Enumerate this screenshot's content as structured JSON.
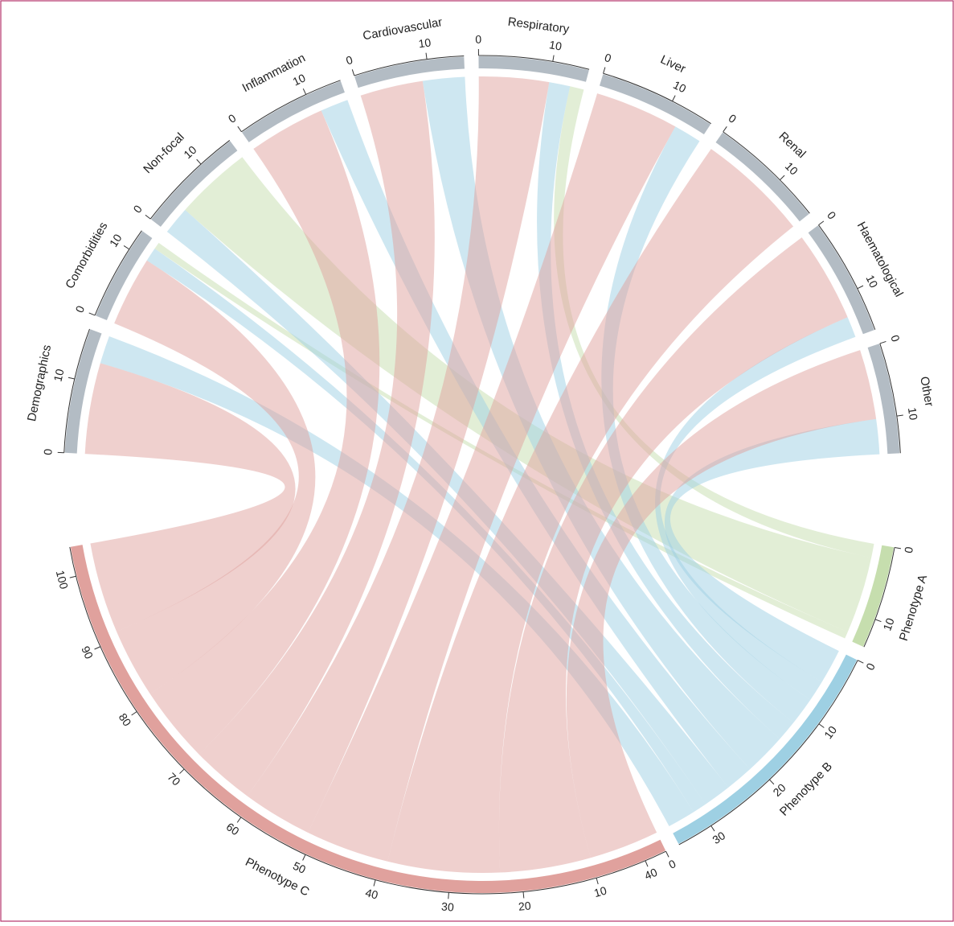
{
  "chart_data": {
    "type": "chord",
    "categories": [
      "Demographics",
      "Comorbidities",
      "Non-focal",
      "Inflammation",
      "Cardiovascular",
      "Respiratory",
      "Liver",
      "Renal",
      "Haematological",
      "Other"
    ],
    "category_color": "#b3bcc4",
    "category_ticks": [
      0,
      10
    ],
    "series": [
      {
        "name": "Phenotype A",
        "color": "#c6deae",
        "values": [
          0,
          1,
          11,
          0,
          0,
          2,
          0,
          0,
          0,
          0
        ],
        "ticks": [
          0,
          10
        ]
      },
      {
        "name": "Phenotype B",
        "color": "#9ed0e3",
        "values": [
          4,
          2,
          4,
          4,
          6,
          3,
          4,
          0,
          3,
          5
        ],
        "ticks": [
          0,
          10,
          20,
          30,
          40
        ]
      },
      {
        "name": "Phenotype C",
        "color": "#e0a19d",
        "values": [
          13,
          10,
          0,
          11,
          9,
          10,
          12,
          16,
          13,
          10
        ],
        "ticks": [
          0,
          10,
          20,
          30,
          40,
          50,
          60,
          70,
          80,
          90,
          100
        ]
      }
    ]
  }
}
